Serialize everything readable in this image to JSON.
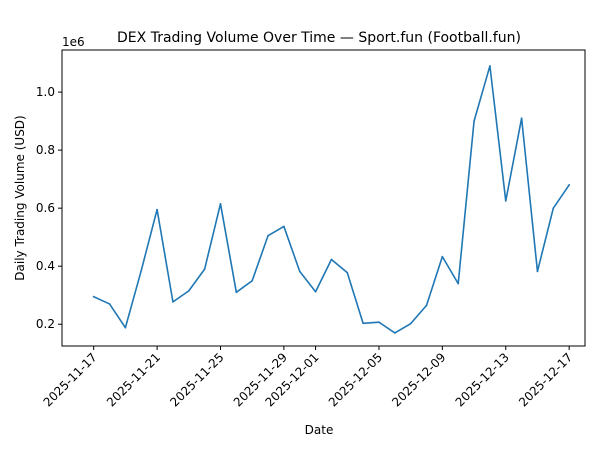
{
  "chart_data": {
    "type": "line",
    "title": "DEX Trading Volume Over Time — Sport.fun (Football.fun)",
    "xlabel": "Date",
    "ylabel": "Daily Trading Volume (USD)",
    "y_offset_label": "1e6",
    "y_scale_factor": 1000000,
    "xlim": [
      "2025-11-15",
      "2025-12-18"
    ],
    "ylim": [
      0.125,
      1.145
    ],
    "x_ticks": [
      "2025-11-17",
      "2025-11-21",
      "2025-11-25",
      "2025-11-29",
      "2025-12-01",
      "2025-12-05",
      "2025-12-09",
      "2025-12-13",
      "2025-12-17"
    ],
    "y_ticks": [
      0.2,
      0.4,
      0.6,
      0.8,
      1.0
    ],
    "y_tick_labels": [
      "0.2",
      "0.4",
      "0.6",
      "0.8",
      "1.0"
    ],
    "grid": false,
    "line_color": "#1f77b4",
    "series": [
      {
        "x": [
          "2025-11-17",
          "2025-11-18",
          "2025-11-19",
          "2025-11-20",
          "2025-11-21",
          "2025-11-22",
          "2025-11-23",
          "2025-11-24",
          "2025-11-25",
          "2025-11-26",
          "2025-11-27",
          "2025-11-28",
          "2025-11-29",
          "2025-11-30",
          "2025-12-01",
          "2025-12-02",
          "2025-12-03",
          "2025-12-04",
          "2025-12-05",
          "2025-12-06",
          "2025-12-07",
          "2025-12-08",
          "2025-12-09",
          "2025-12-10",
          "2025-12-11",
          "2025-12-12",
          "2025-12-13",
          "2025-12-14",
          "2025-12-15",
          "2025-12-16",
          "2025-12-17"
        ],
        "values": [
          0.295,
          0.27,
          0.188,
          0.385,
          0.595,
          0.277,
          0.315,
          0.39,
          0.615,
          0.31,
          0.35,
          0.505,
          0.537,
          0.382,
          0.312,
          0.423,
          0.378,
          0.203,
          0.207,
          0.17,
          0.202,
          0.265,
          0.433,
          0.34,
          0.9,
          1.09,
          0.625,
          0.91,
          0.382,
          0.6,
          0.68
        ]
      }
    ]
  }
}
